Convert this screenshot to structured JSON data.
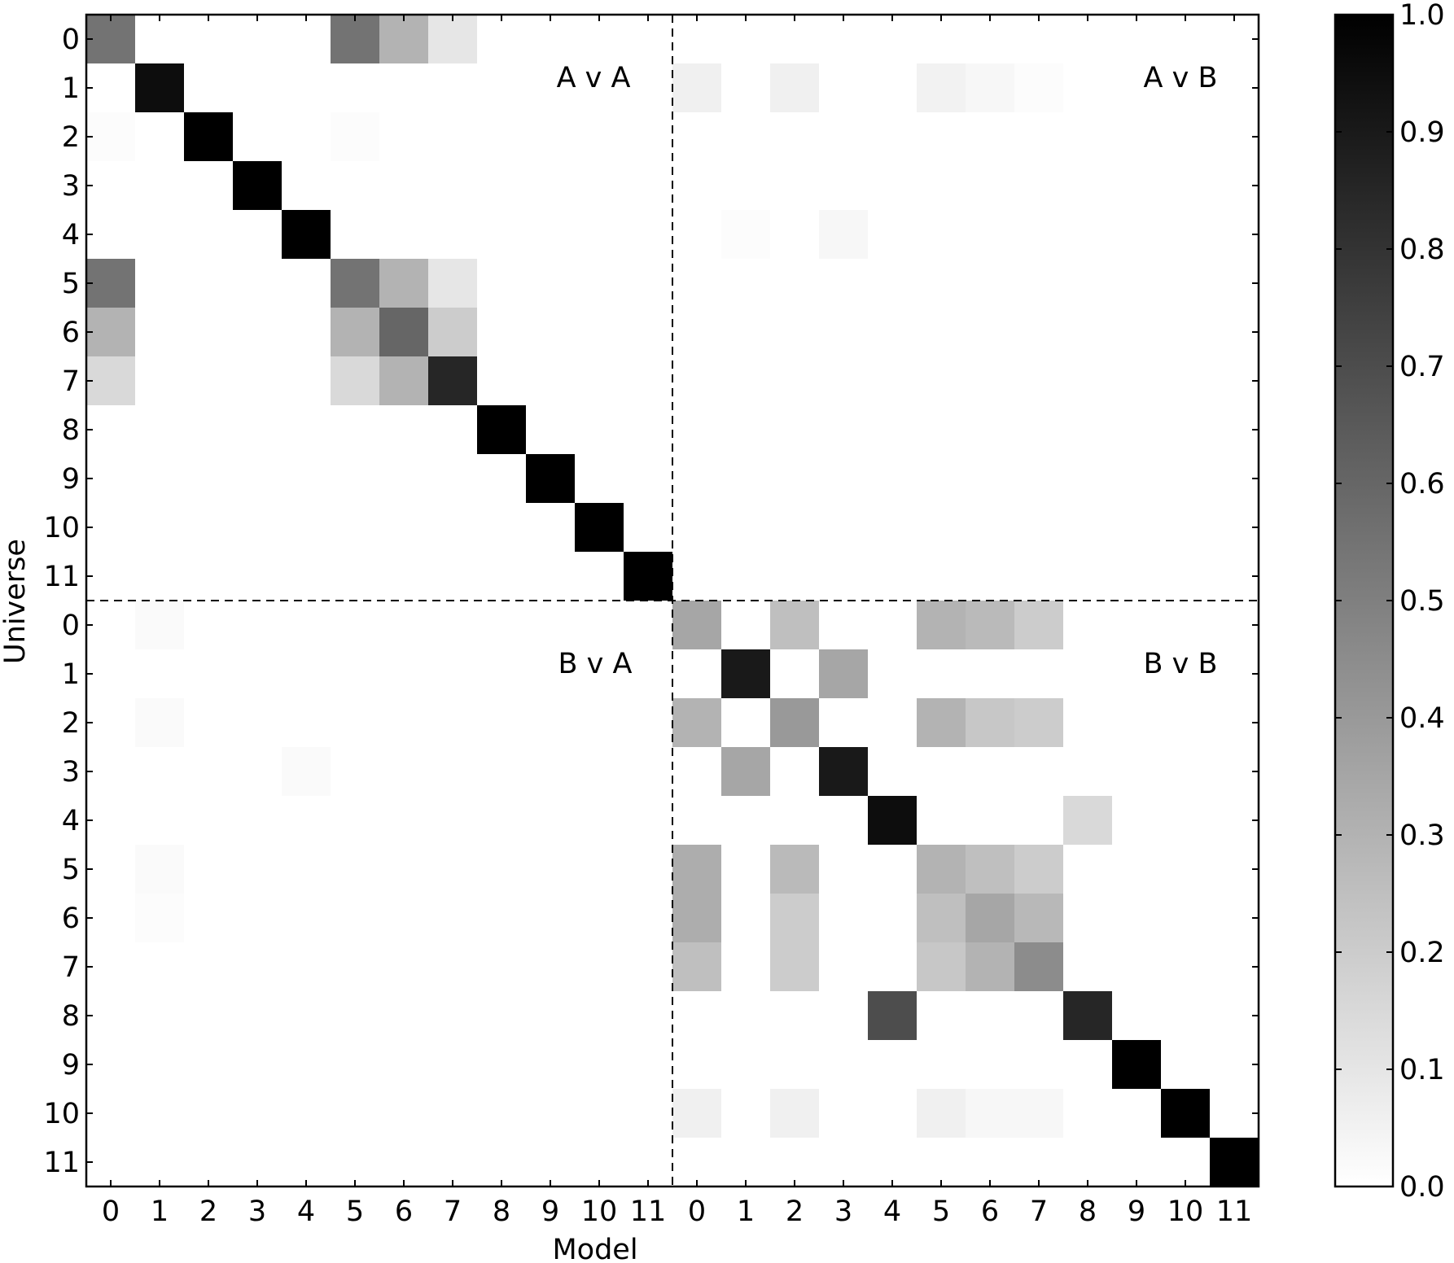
{
  "chart_data": {
    "type": "heatmap",
    "xlabel": "Model",
    "ylabel": "Universe",
    "x_categories": [
      "0",
      "1",
      "2",
      "3",
      "4",
      "5",
      "6",
      "7",
      "8",
      "9",
      "10",
      "11",
      "0",
      "1",
      "2",
      "3",
      "4",
      "5",
      "6",
      "7",
      "8",
      "9",
      "10",
      "11"
    ],
    "y_categories": [
      "0",
      "1",
      "2",
      "3",
      "4",
      "5",
      "6",
      "7",
      "8",
      "9",
      "10",
      "11",
      "0",
      "1",
      "2",
      "3",
      "4",
      "5",
      "6",
      "7",
      "8",
      "9",
      "10",
      "11"
    ],
    "annotations": [
      "A v A",
      "A v B",
      "B v A",
      "B v B"
    ],
    "colormap": "gray_r",
    "clim": [
      0,
      1
    ],
    "cticks": [
      {
        "value": 0,
        "label": "0.0"
      },
      0.1,
      0.2,
      0.3,
      0.4,
      0.5,
      0.6,
      0.7,
      0.8,
      0.9,
      {
        "value": 1,
        "label": "1.0"
      }
    ],
    "z": [
      [
        0.55,
        0,
        0,
        0,
        0,
        0.55,
        0.3,
        0.1,
        0,
        0,
        0,
        0,
        0,
        0,
        0,
        0,
        0,
        0,
        0,
        0,
        0,
        0,
        0,
        0
      ],
      [
        0,
        0.95,
        0,
        0,
        0,
        0,
        0,
        0,
        0,
        0,
        0,
        0,
        0.06,
        0,
        0.06,
        0,
        0,
        0.05,
        0.03,
        0.01,
        0,
        0,
        0,
        0
      ],
      [
        0.01,
        0,
        1,
        0,
        0,
        0.01,
        0,
        0,
        0,
        0,
        0,
        0,
        0,
        0,
        0,
        0,
        0,
        0,
        0,
        0,
        0,
        0,
        0,
        0
      ],
      [
        0,
        0,
        0,
        1,
        0,
        0,
        0,
        0,
        0,
        0,
        0,
        0,
        0,
        0,
        0,
        0,
        0,
        0,
        0,
        0,
        0,
        0,
        0,
        0
      ],
      [
        0,
        0,
        0,
        0,
        1,
        0,
        0,
        0,
        0,
        0,
        0,
        0,
        0,
        0.01,
        0,
        0.03,
        0,
        0,
        0,
        0,
        0,
        0,
        0,
        0
      ],
      [
        0.55,
        0,
        0,
        0,
        0,
        0.55,
        0.3,
        0.1,
        0,
        0,
        0,
        0,
        0,
        0,
        0,
        0,
        0,
        0,
        0,
        0,
        0,
        0,
        0,
        0
      ],
      [
        0.3,
        0,
        0,
        0,
        0,
        0.3,
        0.6,
        0.2,
        0,
        0,
        0,
        0,
        0,
        0,
        0,
        0,
        0,
        0,
        0,
        0,
        0,
        0,
        0,
        0
      ],
      [
        0.15,
        0,
        0,
        0,
        0,
        0.15,
        0.3,
        0.85,
        0,
        0,
        0,
        0,
        0,
        0,
        0,
        0,
        0,
        0,
        0,
        0,
        0,
        0,
        0,
        0
      ],
      [
        0,
        0,
        0,
        0,
        0,
        0,
        0,
        0,
        1,
        0,
        0,
        0,
        0,
        0,
        0,
        0,
        0,
        0,
        0,
        0,
        0,
        0,
        0,
        0
      ],
      [
        0,
        0,
        0,
        0,
        0,
        0,
        0,
        0,
        0,
        1,
        0,
        0,
        0,
        0,
        0,
        0,
        0,
        0,
        0,
        0,
        0,
        0,
        0,
        0
      ],
      [
        0,
        0,
        0,
        0,
        0,
        0,
        0,
        0,
        0,
        0,
        1,
        0,
        0,
        0,
        0,
        0,
        0,
        0,
        0,
        0,
        0,
        0,
        0,
        0
      ],
      [
        0,
        0,
        0,
        0,
        0,
        0,
        0,
        0,
        0,
        0,
        0,
        1,
        0,
        0,
        0,
        0,
        0,
        0,
        0,
        0,
        0,
        0,
        0,
        0
      ],
      [
        0,
        0.02,
        0,
        0,
        0,
        0,
        0,
        0,
        0,
        0,
        0,
        0,
        0.35,
        0,
        0.25,
        0,
        0,
        0.3,
        0.27,
        0.2,
        0,
        0,
        0,
        0
      ],
      [
        0,
        0,
        0,
        0,
        0,
        0,
        0,
        0,
        0,
        0,
        0,
        0,
        0,
        0.9,
        0,
        0.35,
        0,
        0,
        0,
        0,
        0,
        0,
        0,
        0
      ],
      [
        0,
        0.02,
        0,
        0,
        0,
        0,
        0,
        0,
        0,
        0,
        0,
        0,
        0.3,
        0,
        0.4,
        0,
        0,
        0.3,
        0.22,
        0.2,
        0,
        0,
        0,
        0
      ],
      [
        0,
        0,
        0,
        0,
        0.02,
        0,
        0,
        0,
        0,
        0,
        0,
        0,
        0,
        0.35,
        0,
        0.9,
        0,
        0,
        0,
        0,
        0,
        0,
        0,
        0
      ],
      [
        0,
        0,
        0,
        0,
        0,
        0,
        0,
        0,
        0,
        0,
        0,
        0,
        0,
        0,
        0,
        0,
        0.95,
        0,
        0,
        0,
        0.15,
        0,
        0,
        0
      ],
      [
        0,
        0.02,
        0,
        0,
        0,
        0,
        0,
        0,
        0,
        0,
        0,
        0,
        0.32,
        0,
        0.27,
        0,
        0,
        0.3,
        0.25,
        0.2,
        0,
        0,
        0,
        0
      ],
      [
        0,
        0.01,
        0,
        0,
        0,
        0,
        0,
        0,
        0,
        0,
        0,
        0,
        0.32,
        0,
        0.2,
        0,
        0,
        0.25,
        0.35,
        0.28,
        0,
        0,
        0,
        0
      ],
      [
        0,
        0,
        0,
        0,
        0,
        0,
        0,
        0,
        0,
        0,
        0,
        0,
        0.25,
        0,
        0.2,
        0,
        0,
        0.22,
        0.3,
        0.45,
        0,
        0,
        0,
        0
      ],
      [
        0,
        0,
        0,
        0,
        0,
        0,
        0,
        0,
        0,
        0,
        0,
        0,
        0,
        0,
        0,
        0,
        0.7,
        0,
        0,
        0,
        0.85,
        0,
        0,
        0
      ],
      [
        0,
        0,
        0,
        0,
        0,
        0,
        0,
        0,
        0,
        0,
        0,
        0,
        0,
        0,
        0,
        0,
        0,
        0,
        0,
        0,
        0,
        1,
        0,
        0
      ],
      [
        0,
        0,
        0,
        0,
        0,
        0,
        0,
        0,
        0,
        0,
        0,
        0,
        0.06,
        0,
        0.06,
        0,
        0,
        0.06,
        0.03,
        0.03,
        0,
        0,
        1,
        0
      ],
      [
        0,
        0,
        0,
        0,
        0,
        0,
        0,
        0,
        0,
        0,
        0,
        0,
        0,
        0,
        0,
        0,
        0,
        0,
        0,
        0,
        0,
        0,
        0,
        1
      ]
    ]
  }
}
